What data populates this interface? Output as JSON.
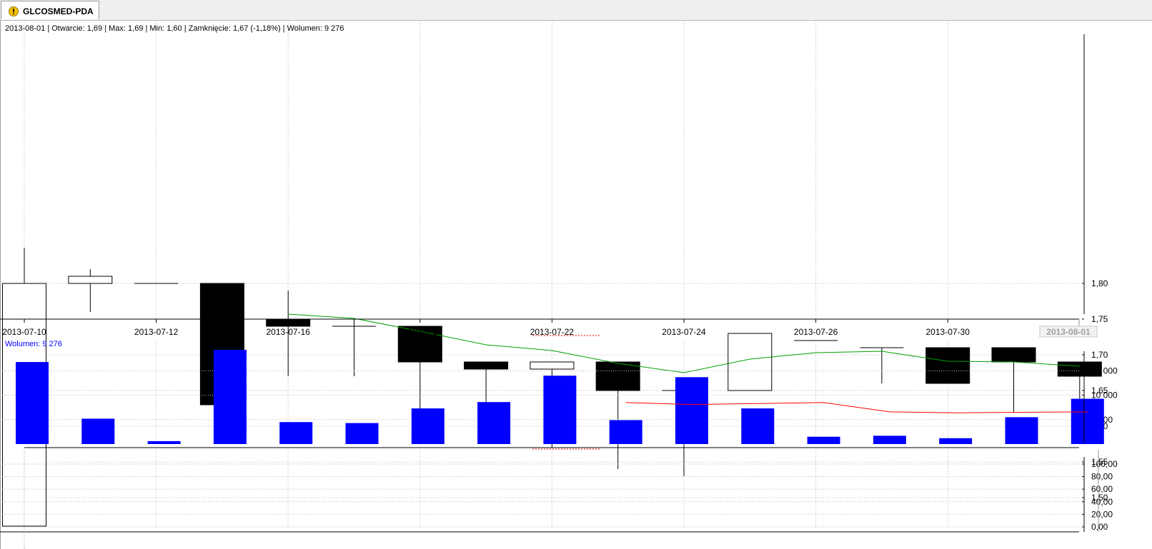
{
  "tab": {
    "title": "GLCOSMED-PDA",
    "icon": "warning-icon"
  },
  "info": {
    "ohlc": "2013-08-01 | Otwarcie: 1,69 | Max: 1,69 | Min: 1,60 | Zamknięcie: 1,67 (-1,18%)   | Wolumen: 9 276",
    "volume": "Wolumen: 9 276"
  },
  "colors": {
    "bearish": "#000000",
    "bullish": "#ffffff",
    "volume": "#0000ff",
    "moving_average": "#00a000",
    "volume_average": "#ff0000",
    "grid": "#bbbbbb"
  },
  "chart_data": [
    {
      "type": "candlestick",
      "dates": [
        "2013-07-10",
        "2013-07-11",
        "2013-07-12",
        "2013-07-15",
        "2013-07-16",
        "2013-07-17",
        "2013-07-18",
        "2013-07-19",
        "2013-07-22",
        "2013-07-23",
        "2013-07-24",
        "2013-07-25",
        "2013-07-26",
        "2013-07-29",
        "2013-07-30",
        "2013-07-31",
        "2013-08-01"
      ],
      "open": [
        1.46,
        1.8,
        1.8,
        1.8,
        1.75,
        1.74,
        1.74,
        1.69,
        1.68,
        1.69,
        1.65,
        1.65,
        1.72,
        1.71,
        1.71,
        1.71,
        1.69
      ],
      "high": [
        1.85,
        1.82,
        1.8,
        1.8,
        1.79,
        1.75,
        1.74,
        1.69,
        1.69,
        1.69,
        1.65,
        1.73,
        1.72,
        1.71,
        1.71,
        1.71,
        1.69
      ],
      "low": [
        1.46,
        1.76,
        1.8,
        1.63,
        1.67,
        1.67,
        1.61,
        1.6,
        1.57,
        1.54,
        1.53,
        1.65,
        1.72,
        1.66,
        1.66,
        1.62,
        1.6
      ],
      "close": [
        1.8,
        1.81,
        1.8,
        1.63,
        1.74,
        1.74,
        1.69,
        1.68,
        1.69,
        1.65,
        1.65,
        1.73,
        1.72,
        1.71,
        1.66,
        1.69,
        1.67
      ],
      "moving_average": [
        null,
        null,
        null,
        null,
        1.757,
        1.751,
        1.733,
        1.714,
        1.706,
        1.688,
        1.675,
        1.694,
        1.703,
        1.705,
        1.691,
        1.69,
        1.684
      ],
      "x_ticks": [
        "2013-07-10",
        "2013-07-12",
        "2013-07-16",
        "2013-07-18",
        "2013-07-22",
        "2013-07-24",
        "2013-07-26",
        "2013-07-30"
      ],
      "x_highlight": "2013-08-01",
      "y_ticks": [
        "1,80",
        "1,75",
        "1,70",
        "1,65",
        "1,60",
        "1,55",
        "1,50"
      ],
      "y_tick_values": [
        1.8,
        1.75,
        1.7,
        1.65,
        1.6,
        1.55,
        1.5
      ],
      "ylim": [
        1.46,
        1.85
      ],
      "grid": true
    },
    {
      "type": "bar",
      "values": [
        16800,
        5200,
        600,
        19300,
        4500,
        4300,
        7300,
        8600,
        14000,
        4900,
        13700,
        7300,
        1500,
        1700,
        1200,
        5500,
        9276
      ],
      "moving_average": [
        null,
        null,
        null,
        null,
        null,
        null,
        null,
        null,
        null,
        8500,
        8100,
        8300,
        8500,
        6600,
        6400,
        6500,
        6600
      ],
      "y_ticks": [
        "15 000",
        "10 000",
        "5 000"
      ],
      "y_tick_values": [
        15000,
        10000,
        5000
      ],
      "ylim": [
        0,
        19300
      ],
      "grid": true
    },
    {
      "type": "line",
      "values": [],
      "y_ticks": [
        "100,00",
        "80,00",
        "60,00",
        "40,00",
        "20,00",
        "0,00"
      ],
      "y_tick_values": [
        100,
        80,
        60,
        40,
        20,
        0
      ],
      "ylim": [
        0,
        100
      ],
      "grid": true
    }
  ]
}
